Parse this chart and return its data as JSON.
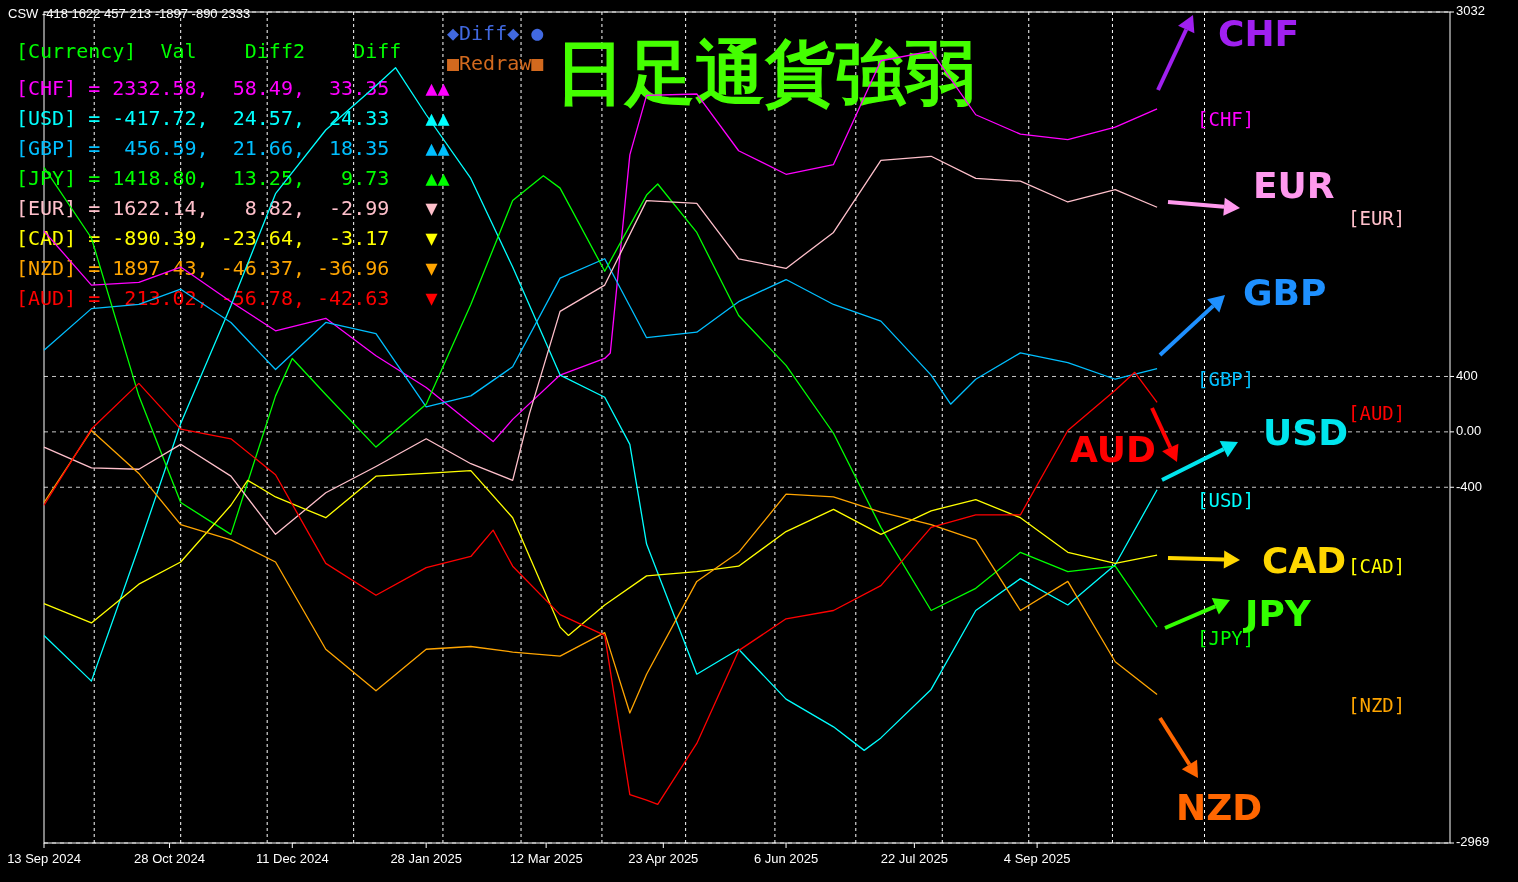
{
  "chart_data": {
    "type": "line",
    "title": "日足通貨強弱",
    "xlim": [
      "2024-09-13",
      "2026-01-30"
    ],
    "ylim": [
      -2969,
      3032
    ],
    "xticks": [
      {
        "value": "2024-09-13",
        "label": "13 Sep 2024"
      },
      {
        "value": "2024-10-28",
        "label": "28 Oct 2024"
      },
      {
        "value": "2024-12-11",
        "label": "11 Dec 2024"
      },
      {
        "value": "2025-01-28",
        "label": "28 Jan 2025"
      },
      {
        "value": "2025-03-12",
        "label": "12 Mar 2025"
      },
      {
        "value": "2025-04-23",
        "label": "23 Apr 2025"
      },
      {
        "value": "2025-06-06",
        "label": "6 Jun 2025"
      },
      {
        "value": "2025-07-22",
        "label": "22 Jul 2025"
      },
      {
        "value": "2025-09-04",
        "label": "4 Sep 2025"
      }
    ],
    "yticks": [
      3032,
      400,
      {
        "value": 0,
        "label": "0.00"
      },
      -400,
      -2969
    ],
    "grid": "y",
    "ref_lines": [
      {
        "axis": "x",
        "value": "2024-10-01",
        "color": "#ffffff",
        "line_style": "dashed"
      },
      {
        "axis": "x",
        "value": "2024-11-01",
        "color": "#ffffff",
        "line_style": "dashed"
      },
      {
        "axis": "x",
        "value": "2024-12-02",
        "color": "#ffffff",
        "line_style": "dashed"
      },
      {
        "axis": "x",
        "value": "2025-01-02",
        "color": "#ffffff",
        "line_style": "dashed"
      },
      {
        "axis": "x",
        "value": "2025-02-03",
        "color": "#ffffff",
        "line_style": "dashed"
      },
      {
        "axis": "x",
        "value": "2025-03-03",
        "color": "#ffffff",
        "line_style": "dashed"
      },
      {
        "axis": "x",
        "value": "2025-04-01",
        "color": "#ffffff",
        "line_style": "dashed"
      },
      {
        "axis": "x",
        "value": "2025-05-01",
        "color": "#ffffff",
        "line_style": "dashed"
      },
      {
        "axis": "x",
        "value": "2025-06-02",
        "color": "#ffffff",
        "line_style": "dashed"
      },
      {
        "axis": "x",
        "value": "2025-07-01",
        "color": "#ffffff",
        "line_style": "dashed"
      },
      {
        "axis": "x",
        "value": "2025-08-01",
        "color": "#ffffff",
        "line_style": "dashed"
      },
      {
        "axis": "x",
        "value": "2025-09-01",
        "color": "#ffffff",
        "line_style": "dashed"
      },
      {
        "axis": "x",
        "value": "2025-10-01",
        "color": "#ffffff",
        "line_style": "dashed"
      },
      {
        "axis": "x",
        "value": "2025-11-03",
        "color": "#ffffff",
        "line_style": "dashed"
      }
    ],
    "series": [
      {
        "name": "[CHF]",
        "color": "#ff00ff",
        "x": [
          "2024-09-13",
          "2024-09-30",
          "2024-10-17",
          "2024-11-01",
          "2024-11-19",
          "2024-12-05",
          "2024-12-23",
          "2025-01-10",
          "2025-01-28",
          "2025-02-13",
          "2025-02-21",
          "2025-02-28",
          "2025-03-17",
          "2025-04-02",
          "2025-04-04",
          "2025-04-11",
          "2025-04-17",
          "2025-05-05",
          "2025-05-20",
          "2025-06-06",
          "2025-06-23",
          "2025-07-10",
          "2025-07-28",
          "2025-08-13",
          "2025-08-29",
          "2025-09-15",
          "2025-10-02",
          "2025-10-17"
        ],
        "values": [
          1450,
          1060,
          1080,
          1190,
          940,
          730,
          820,
          550,
          320,
          60,
          -70,
          90,
          410,
          530,
          570,
          2000,
          2430,
          2440,
          2030,
          1860,
          1930,
          2680,
          2750,
          2290,
          2150,
          2110,
          2200,
          2333
        ]
      },
      {
        "name": "[USD]",
        "color": "#00ffff",
        "x": [
          "2024-09-13",
          "2024-09-30",
          "2024-10-17",
          "2024-11-01",
          "2024-11-19",
          "2024-12-05",
          "2024-12-23",
          "2025-01-10",
          "2025-01-17",
          "2025-01-28",
          "2025-02-13",
          "2025-02-28",
          "2025-03-17",
          "2025-04-02",
          "2025-04-11",
          "2025-04-17",
          "2025-05-05",
          "2025-05-20",
          "2025-06-06",
          "2025-06-23",
          "2025-07-04",
          "2025-07-10",
          "2025-07-28",
          "2025-08-13",
          "2025-08-29",
          "2025-09-15",
          "2025-10-02",
          "2025-10-17"
        ],
        "values": [
          -1470,
          -1800,
          -830,
          60,
          910,
          1720,
          2180,
          2500,
          2630,
          2290,
          1830,
          1190,
          410,
          250,
          -90,
          -810,
          -1750,
          -1570,
          -1930,
          -2130,
          -2300,
          -2210,
          -1860,
          -1290,
          -1060,
          -1250,
          -960,
          -418
        ]
      },
      {
        "name": "[GBP]",
        "color": "#00bfff",
        "x": [
          "2024-09-13",
          "2024-09-30",
          "2024-10-17",
          "2024-11-01",
          "2024-11-19",
          "2024-12-05",
          "2024-12-23",
          "2025-01-10",
          "2025-01-28",
          "2025-02-13",
          "2025-02-28",
          "2025-03-17",
          "2025-04-02",
          "2025-04-17",
          "2025-05-05",
          "2025-05-20",
          "2025-06-06",
          "2025-06-23",
          "2025-07-10",
          "2025-07-28",
          "2025-08-04",
          "2025-08-13",
          "2025-08-29",
          "2025-09-15",
          "2025-10-02",
          "2025-10-17"
        ],
        "values": [
          590,
          890,
          920,
          1030,
          790,
          450,
          790,
          710,
          180,
          260,
          470,
          1110,
          1250,
          680,
          720,
          940,
          1100,
          920,
          800,
          410,
          200,
          380,
          570,
          500,
          380,
          457
        ]
      },
      {
        "name": "[JPY]",
        "color": "#00ff00",
        "x": [
          "2024-09-13",
          "2024-09-30",
          "2024-10-17",
          "2024-11-01",
          "2024-11-19",
          "2024-12-05",
          "2024-12-11",
          "2024-12-23",
          "2025-01-10",
          "2025-01-28",
          "2025-02-13",
          "2025-02-28",
          "2025-03-11",
          "2025-03-17",
          "2025-04-02",
          "2025-04-17",
          "2025-04-21",
          "2025-05-05",
          "2025-05-20",
          "2025-06-06",
          "2025-06-23",
          "2025-07-10",
          "2025-07-28",
          "2025-08-13",
          "2025-08-29",
          "2025-09-15",
          "2025-10-02",
          "2025-10-17"
        ],
        "values": [
          1910,
          1400,
          260,
          -510,
          -740,
          260,
          530,
          270,
          -110,
          200,
          920,
          1670,
          1850,
          1760,
          1160,
          1710,
          1790,
          1440,
          840,
          480,
          -10,
          -690,
          -1290,
          -1130,
          -870,
          -1010,
          -970,
          -1410
        ]
      },
      {
        "name": "[EUR]",
        "color": "#ffc0cb",
        "x": [
          "2024-09-13",
          "2024-09-30",
          "2024-10-17",
          "2024-11-01",
          "2024-11-19",
          "2024-12-05",
          "2024-12-23",
          "2025-01-10",
          "2025-01-28",
          "2025-02-13",
          "2025-02-28",
          "2025-03-06",
          "2025-03-17",
          "2025-04-02",
          "2025-04-17",
          "2025-05-05",
          "2025-05-20",
          "2025-06-06",
          "2025-06-23",
          "2025-07-10",
          "2025-07-28",
          "2025-08-13",
          "2025-08-29",
          "2025-09-15",
          "2025-10-02",
          "2025-10-17"
        ],
        "values": [
          -110,
          -260,
          -270,
          -90,
          -320,
          -740,
          -440,
          -250,
          -50,
          -230,
          -350,
          130,
          870,
          1060,
          1670,
          1650,
          1250,
          1180,
          1440,
          1960,
          1990,
          1830,
          1810,
          1660,
          1750,
          1622
        ]
      },
      {
        "name": "[CAD]",
        "color": "#ffff00",
        "x": [
          "2024-09-13",
          "2024-09-30",
          "2024-10-17",
          "2024-11-01",
          "2024-11-19",
          "2024-11-25",
          "2024-12-05",
          "2024-12-23",
          "2025-01-10",
          "2025-01-28",
          "2025-02-13",
          "2025-02-28",
          "2025-03-17",
          "2025-03-20",
          "2025-04-02",
          "2025-04-17",
          "2025-05-05",
          "2025-05-20",
          "2025-06-06",
          "2025-06-23",
          "2025-07-10",
          "2025-07-28",
          "2025-08-13",
          "2025-08-29",
          "2025-09-15",
          "2025-10-02",
          "2025-10-17"
        ],
        "values": [
          -1240,
          -1380,
          -1100,
          -940,
          -530,
          -350,
          -470,
          -620,
          -320,
          -300,
          -280,
          -620,
          -1410,
          -1470,
          -1250,
          -1040,
          -1010,
          -970,
          -720,
          -560,
          -740,
          -570,
          -490,
          -620,
          -870,
          -950,
          -890
        ]
      },
      {
        "name": "[NZD]",
        "color": "#ffa500",
        "x": [
          "2024-09-13",
          "2024-09-30",
          "2024-10-17",
          "2024-11-01",
          "2024-11-19",
          "2024-12-05",
          "2024-12-23",
          "2025-01-10",
          "2025-01-28",
          "2025-02-13",
          "2025-02-28",
          "2025-03-17",
          "2025-04-02",
          "2025-04-11",
          "2025-04-17",
          "2025-05-05",
          "2025-05-20",
          "2025-06-06",
          "2025-06-23",
          "2025-07-10",
          "2025-07-28",
          "2025-08-13",
          "2025-08-29",
          "2025-09-15",
          "2025-10-02",
          "2025-10-17"
        ],
        "values": [
          -510,
          10,
          -300,
          -670,
          -780,
          -940,
          -1570,
          -1870,
          -1570,
          -1550,
          -1590,
          -1620,
          -1450,
          -2030,
          -1750,
          -1080,
          -870,
          -450,
          -470,
          -580,
          -670,
          -780,
          -1290,
          -1080,
          -1660,
          -1897
        ]
      },
      {
        "name": "[AUD]",
        "color": "#ff0000",
        "x": [
          "2024-09-13",
          "2024-09-30",
          "2024-10-17",
          "2024-11-01",
          "2024-11-19",
          "2024-12-05",
          "2024-12-23",
          "2025-01-10",
          "2025-01-28",
          "2025-02-13",
          "2025-02-21",
          "2025-02-28",
          "2025-03-17",
          "2025-04-02",
          "2025-04-11",
          "2025-04-17",
          "2025-04-21",
          "2025-05-05",
          "2025-05-20",
          "2025-06-06",
          "2025-06-23",
          "2025-07-10",
          "2025-07-28",
          "2025-08-13",
          "2025-08-29",
          "2025-09-15",
          "2025-10-02",
          "2025-10-09",
          "2025-10-17"
        ],
        "values": [
          -530,
          20,
          350,
          20,
          -50,
          -310,
          -950,
          -1180,
          -980,
          -900,
          -710,
          -970,
          -1320,
          -1470,
          -2620,
          -2660,
          -2690,
          -2250,
          -1580,
          -1350,
          -1290,
          -1110,
          -690,
          -600,
          -600,
          10,
          300,
          430,
          213
        ]
      }
    ],
    "annotations": [
      "CSW -418 1622 457 213 -1897 -890 2333",
      "[Currency]  Val    Diff2    Diff",
      "[CHF] = 2332.58,  58.49,  33.35   ▲▲",
      "[USD] = -417.72,  24.57,  24.33   ▲▲",
      "[GBP] =  456.59,  21.66,  18.35   ▲▲",
      "[JPY] = 1418.80,  13.25,   9.73   ▲▲",
      "[EUR] = 1622.14,   8.82,  -2.99   ▼",
      "[CAD] = -890.39, -23.64,  -3.17   ▼",
      "[NZD] = 1897.43, -46.37, -36.96   ▼",
      "[AUD] =  213.02, -56.78, -42.63   ▼",
      "◆Diff◆ ●",
      "■Redraw■",
      "CHF",
      "EUR",
      "GBP",
      "AUD",
      "USD",
      "CAD",
      "JPY",
      "NZD"
    ]
  }
}
